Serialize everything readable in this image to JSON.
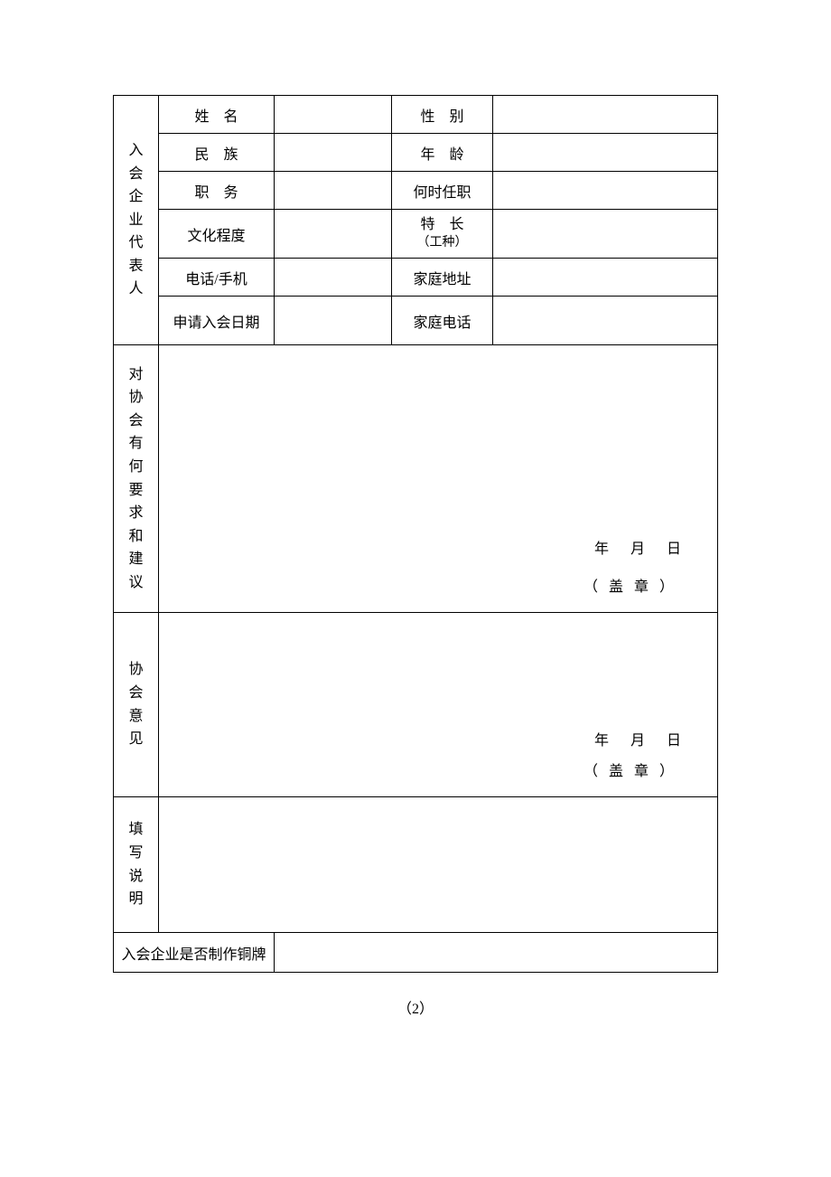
{
  "representative": {
    "section_label": [
      "入",
      "会",
      "企",
      "业",
      "代",
      "表",
      "人"
    ],
    "rows": [
      {
        "label_left": "姓　名",
        "label_right": "性　别"
      },
      {
        "label_left": "民　族",
        "label_right": "年　龄"
      },
      {
        "label_left": "职　务",
        "label_right": "何时任职"
      },
      {
        "label_left": "文化程度",
        "label_right_top": "特　长",
        "label_right_sub": "（工种）"
      },
      {
        "label_left": "电话/手机",
        "label_right": "家庭地址"
      },
      {
        "label_left": "申请入会日期",
        "label_right": "家庭电话"
      }
    ]
  },
  "section_requests": {
    "label": [
      "对",
      "协",
      "会",
      "有",
      "何",
      "要",
      "求",
      "和",
      "建",
      "议"
    ],
    "date_year": "年",
    "date_month": "月",
    "date_day": "日",
    "seal": "（ 盖 章 ）"
  },
  "section_opinion": {
    "label": [
      "协",
      "会",
      "意",
      "见"
    ],
    "date_year": "年",
    "date_month": "月",
    "date_day": "日",
    "seal": "（ 盖 章 ）"
  },
  "section_instructions": {
    "label": [
      "填",
      "写",
      "说",
      "明"
    ]
  },
  "plaque_row": {
    "label": "入会企业是否制作铜牌"
  },
  "page_number": "（2）"
}
